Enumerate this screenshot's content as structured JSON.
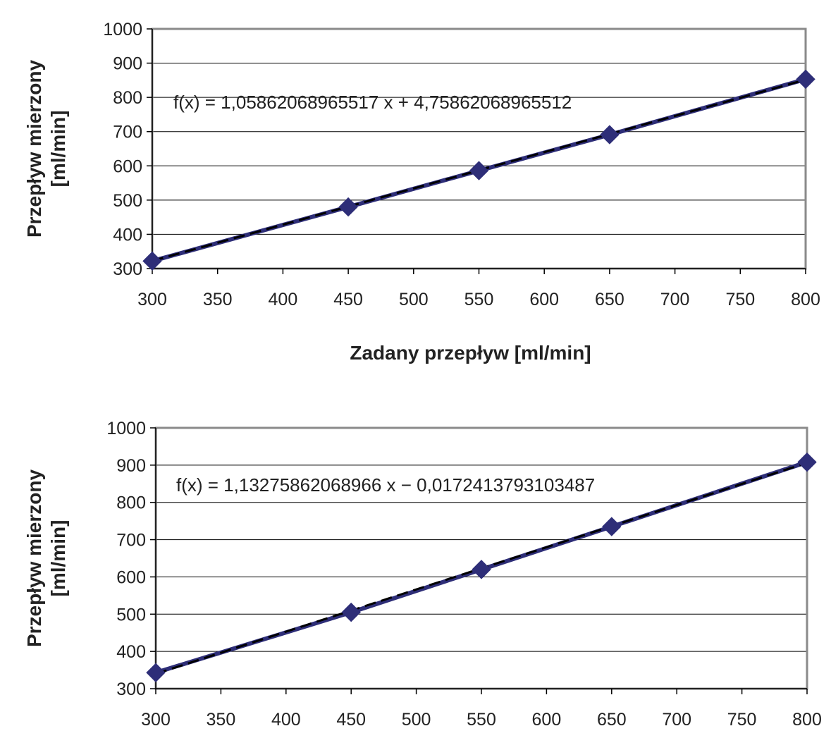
{
  "chart_data": [
    {
      "type": "scatter",
      "x": [
        300,
        450,
        550,
        650,
        800
      ],
      "y": [
        322,
        480,
        586,
        691,
        853
      ],
      "trendline": {
        "slope": 1.05862068965517,
        "intercept": 4.75862068965512
      },
      "equation": "f(x) = 1,05862068965517 x + 4,75862068965512",
      "xlabel": "Zadany przepływ [ml/min]",
      "ylabel_lines": [
        "Przepływ mierzony",
        "[ml/min]"
      ],
      "xlim": [
        300,
        800
      ],
      "ylim": [
        300,
        1000
      ],
      "xticks": [
        "300",
        "350",
        "400",
        "450",
        "500",
        "550",
        "600",
        "650",
        "700",
        "750",
        "800"
      ],
      "yticks": [
        "1000",
        "900",
        "800",
        "700",
        "600",
        "500",
        "400",
        "300"
      ],
      "grid": "horizontal",
      "colors": {
        "series": "#2e2e78",
        "trend": "#000000",
        "grid": "#000000"
      }
    },
    {
      "type": "scatter",
      "x": [
        300,
        450,
        550,
        650,
        800
      ],
      "y": [
        343,
        505,
        620,
        735,
        908
      ],
      "trendline": {
        "slope": 1.13275862068966,
        "intercept": -0.0172413793103487
      },
      "equation": "f(x) = 1,13275862068966 x − 0,0172413793103487",
      "xlabel": "",
      "ylabel_lines": [
        "Przepływ mierzony",
        "[ml/min]"
      ],
      "xlim": [
        300,
        800
      ],
      "ylim": [
        300,
        1000
      ],
      "xticks": [
        "300",
        "350",
        "400",
        "450",
        "500",
        "550",
        "600",
        "650",
        "700",
        "750",
        "800"
      ],
      "yticks": [
        "1000",
        "900",
        "800",
        "700",
        "600",
        "500",
        "400",
        "300"
      ],
      "grid": "horizontal",
      "colors": {
        "series": "#2e2e78",
        "trend": "#000000",
        "grid": "#000000"
      }
    }
  ]
}
